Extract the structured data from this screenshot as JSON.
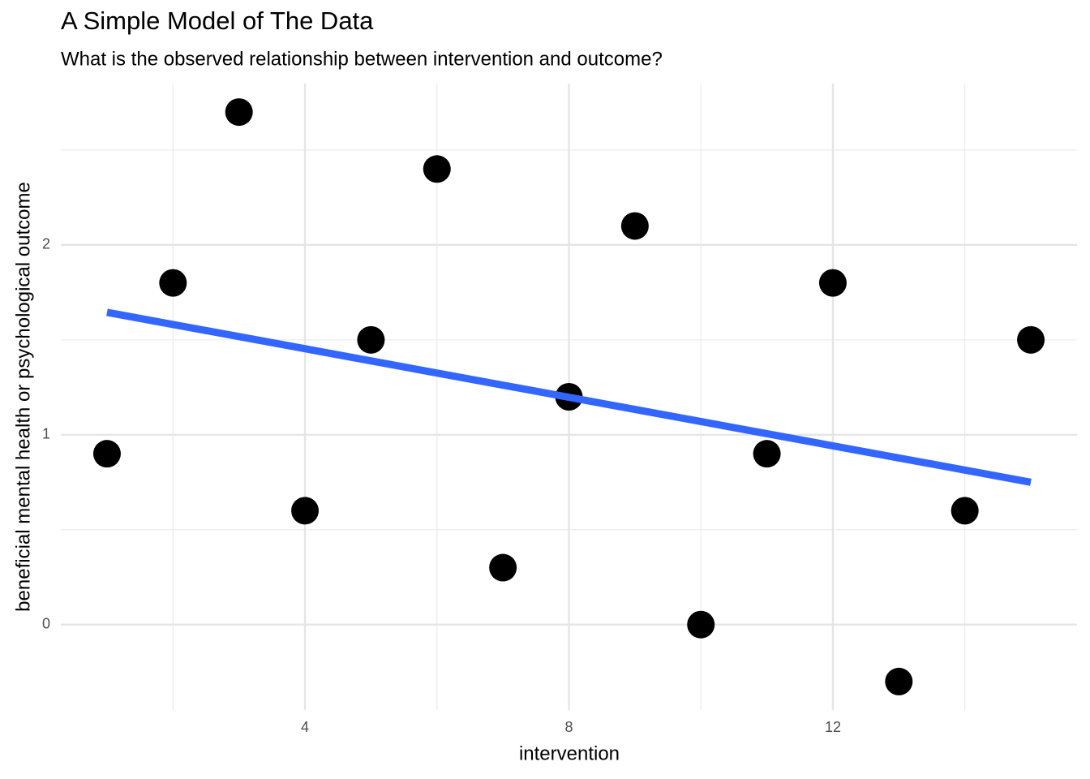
{
  "chart_data": {
    "type": "scatter",
    "title": "A Simple Model of The Data",
    "subtitle": "What is the observed relationship between intervention and outcome?",
    "x_label": "intervention",
    "y_label": "beneficial mental health or psychological outcome",
    "x": [
      1,
      2,
      3,
      4,
      5,
      6,
      7,
      8,
      9,
      10,
      11,
      12,
      13,
      14,
      15
    ],
    "values": [
      0.9,
      1.8,
      2.7,
      0.6,
      1.5,
      2.4,
      0.3,
      1.2,
      2.1,
      0.0,
      0.9,
      1.8,
      -0.3,
      0.6,
      1.5
    ],
    "color": "#000000",
    "trend": {
      "x": [
        1,
        15
      ],
      "y": [
        1.645,
        0.75
      ],
      "color": "#3366ff"
    },
    "xlim": [
      0.3,
      15.7
    ],
    "ylim": [
      -0.45,
      2.85
    ],
    "xticks": [
      4,
      8,
      12
    ],
    "yticks": [
      0,
      1,
      2
    ],
    "minor_xticks": [
      2,
      6,
      10,
      14
    ],
    "minor_yticks": [
      0.5,
      1.5,
      2.5
    ],
    "grid": true
  }
}
